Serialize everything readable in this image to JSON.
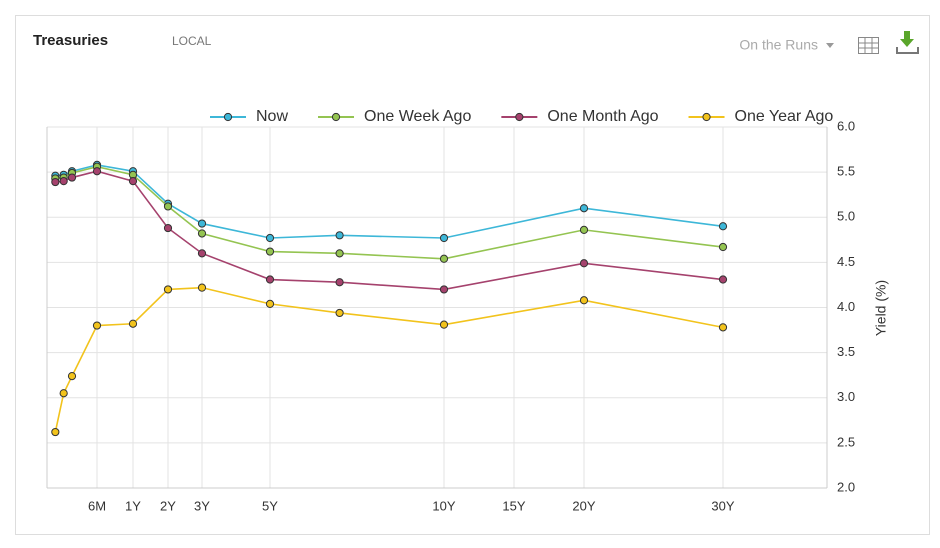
{
  "header": {
    "title": "Treasuries",
    "tag": "LOCAL",
    "selector": "On the Runs"
  },
  "chart_data": {
    "type": "line",
    "x": [
      0.0833,
      0.1667,
      0.25,
      0.5,
      1,
      2,
      3,
      5,
      7,
      10,
      20,
      30
    ],
    "xlim": [
      0,
      37.5
    ],
    "xticks": [
      {
        "value": 0.5,
        "label": "6M"
      },
      {
        "value": 1,
        "label": "1Y"
      },
      {
        "value": 2,
        "label": "2Y"
      },
      {
        "value": 3,
        "label": "3Y"
      },
      {
        "value": 5,
        "label": "5Y"
      },
      {
        "value": 10,
        "label": "10Y"
      },
      {
        "value": 15,
        "label": "15Y"
      },
      {
        "value": 20,
        "label": "20Y"
      },
      {
        "value": 30,
        "label": "30Y"
      }
    ],
    "ylim": [
      2,
      6
    ],
    "yticks": [
      {
        "value": 2,
        "label": "2.0"
      },
      {
        "value": 2.5,
        "label": "2.5"
      },
      {
        "value": 3,
        "label": "3.0"
      },
      {
        "value": 3.5,
        "label": "3.5"
      },
      {
        "value": 4,
        "label": "4.0"
      },
      {
        "value": 4.5,
        "label": "4.5"
      },
      {
        "value": 5,
        "label": "5.0"
      },
      {
        "value": 5.5,
        "label": "5.5"
      },
      {
        "value": 6,
        "label": "6.0"
      }
    ],
    "y_label": "Yield (%)",
    "grid": true,
    "legend": "top",
    "series": [
      {
        "name": "Now",
        "color": "#3db7d8",
        "values": [
          5.46,
          5.47,
          5.51,
          5.58,
          5.51,
          5.15,
          4.93,
          4.77,
          4.8,
          4.77,
          5.1,
          4.9
        ]
      },
      {
        "name": "One Week Ago",
        "color": "#94c451",
        "values": [
          5.43,
          5.44,
          5.49,
          5.56,
          5.47,
          5.12,
          4.82,
          4.62,
          4.6,
          4.54,
          4.86,
          4.67
        ]
      },
      {
        "name": "One Month Ago",
        "color": "#a5426d",
        "values": [
          5.39,
          5.4,
          5.44,
          5.51,
          5.4,
          4.88,
          4.6,
          4.31,
          4.28,
          4.2,
          4.49,
          4.31
        ]
      },
      {
        "name": "One Year Ago",
        "color": "#f2c31c",
        "values": [
          2.62,
          3.05,
          3.24,
          3.8,
          3.82,
          4.2,
          4.22,
          4.04,
          3.94,
          3.81,
          4.08,
          3.78
        ]
      }
    ]
  }
}
